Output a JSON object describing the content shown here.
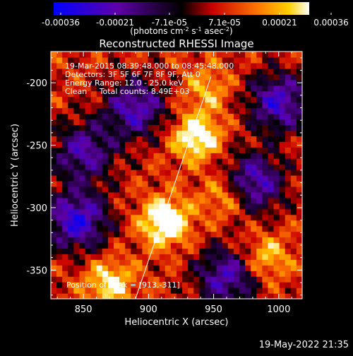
{
  "colorbar": {
    "tick_labels": [
      "-0.00036",
      "-0.00021",
      "-7.1e-05",
      "7.1e-05",
      "0.00021",
      "0.00036"
    ],
    "units_parts": [
      "(photons cm",
      "-2",
      " s",
      "-1",
      " asec",
      "-2",
      ")"
    ]
  },
  "image": {
    "title": "Reconstructed RHESSI Image",
    "overlay_lines": [
      "19-Mar-2015 08:39:48.000 to 08:45:48.000",
      "Detectors: 3F 5F 6F 7F 8F 9F, Att 0",
      "Energy Range: 12.0 - 25.0 keV",
      "Clean     Total counts: 8.49E+03"
    ],
    "peak_label": "Position of Peak = [913,-311]"
  },
  "footer": {
    "timestamp": "19-May-2022 21:35"
  },
  "chart_data": {
    "type": "heatmap",
    "title": "Reconstructed RHESSI Image",
    "xlabel": "Heliocentric X (arcsec)",
    "ylabel": "Heliocentric Y (arcsec)",
    "xlim": [
      825,
      1018
    ],
    "ylim": [
      -373,
      -175
    ],
    "x_ticks": [
      850,
      900,
      950,
      1000
    ],
    "y_ticks": [
      -200,
      -250,
      -300,
      -350
    ],
    "color_range": [
      -0.00036,
      0.00036
    ],
    "peak": {
      "x": 913,
      "y": -311
    },
    "limb_line": [
      [
        890,
        -373
      ],
      [
        948,
        -195
      ]
    ],
    "bright_sources": [
      {
        "x": 913,
        "y": -311,
        "value": 0.00036
      },
      {
        "x": 937,
        "y": -243,
        "value": 0.00031
      },
      {
        "x": 960,
        "y": -290,
        "value": 0.00021
      },
      {
        "x": 870,
        "y": -360,
        "value": 0.00024
      },
      {
        "x": 990,
        "y": -340,
        "value": 0.0002
      },
      {
        "x": 945,
        "y": -205,
        "value": 0.00015
      }
    ],
    "dark_regions": [
      {
        "x": 845,
        "y": -310,
        "value": -0.00021
      },
      {
        "x": 980,
        "y": -280,
        "value": -0.00018
      },
      {
        "x": 890,
        "y": -220,
        "value": -0.00015
      },
      {
        "x": 1000,
        "y": -215,
        "value": -0.00017
      },
      {
        "x": 960,
        "y": -355,
        "value": -0.00014
      },
      {
        "x": 850,
        "y": -255,
        "value": -0.00012
      }
    ]
  }
}
